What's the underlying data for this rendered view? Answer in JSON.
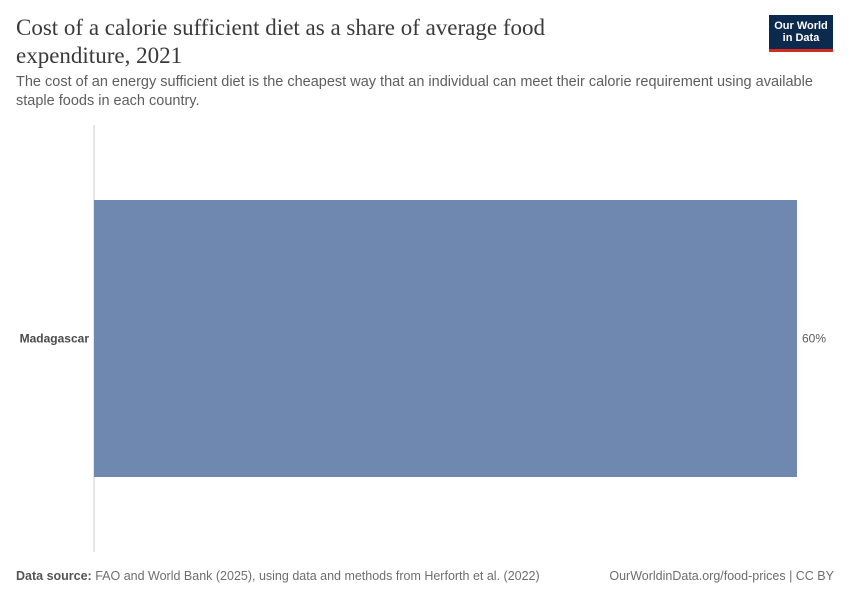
{
  "header": {
    "title": "Cost of a calorie sufficient diet as a share of average food expenditure, 2021",
    "subtitle": "The cost of an energy sufficient diet is the cheapest way that an individual can meet their calorie requirement using available staple foods in each country."
  },
  "logo": {
    "line1": "Our World",
    "line2": "in Data"
  },
  "footer": {
    "source_label": "Data source:",
    "source_text": "FAO and World Bank (2025), using data and methods from Herforth et al. (2022)",
    "link_text": "OurWorldinData.org/food-prices | CC BY"
  },
  "colors": {
    "bar": "#6f88b0",
    "axis": "#cccccc",
    "label": "#4a4a4a"
  },
  "chart_data": {
    "type": "bar",
    "orientation": "horizontal",
    "title": "Cost of a calorie sufficient diet as a share of average food expenditure, 2021",
    "categories": [
      "Madagascar"
    ],
    "values": [
      60
    ],
    "value_labels": [
      "60%"
    ],
    "unit": "%",
    "xlim": [
      0,
      60
    ],
    "grid": false
  }
}
